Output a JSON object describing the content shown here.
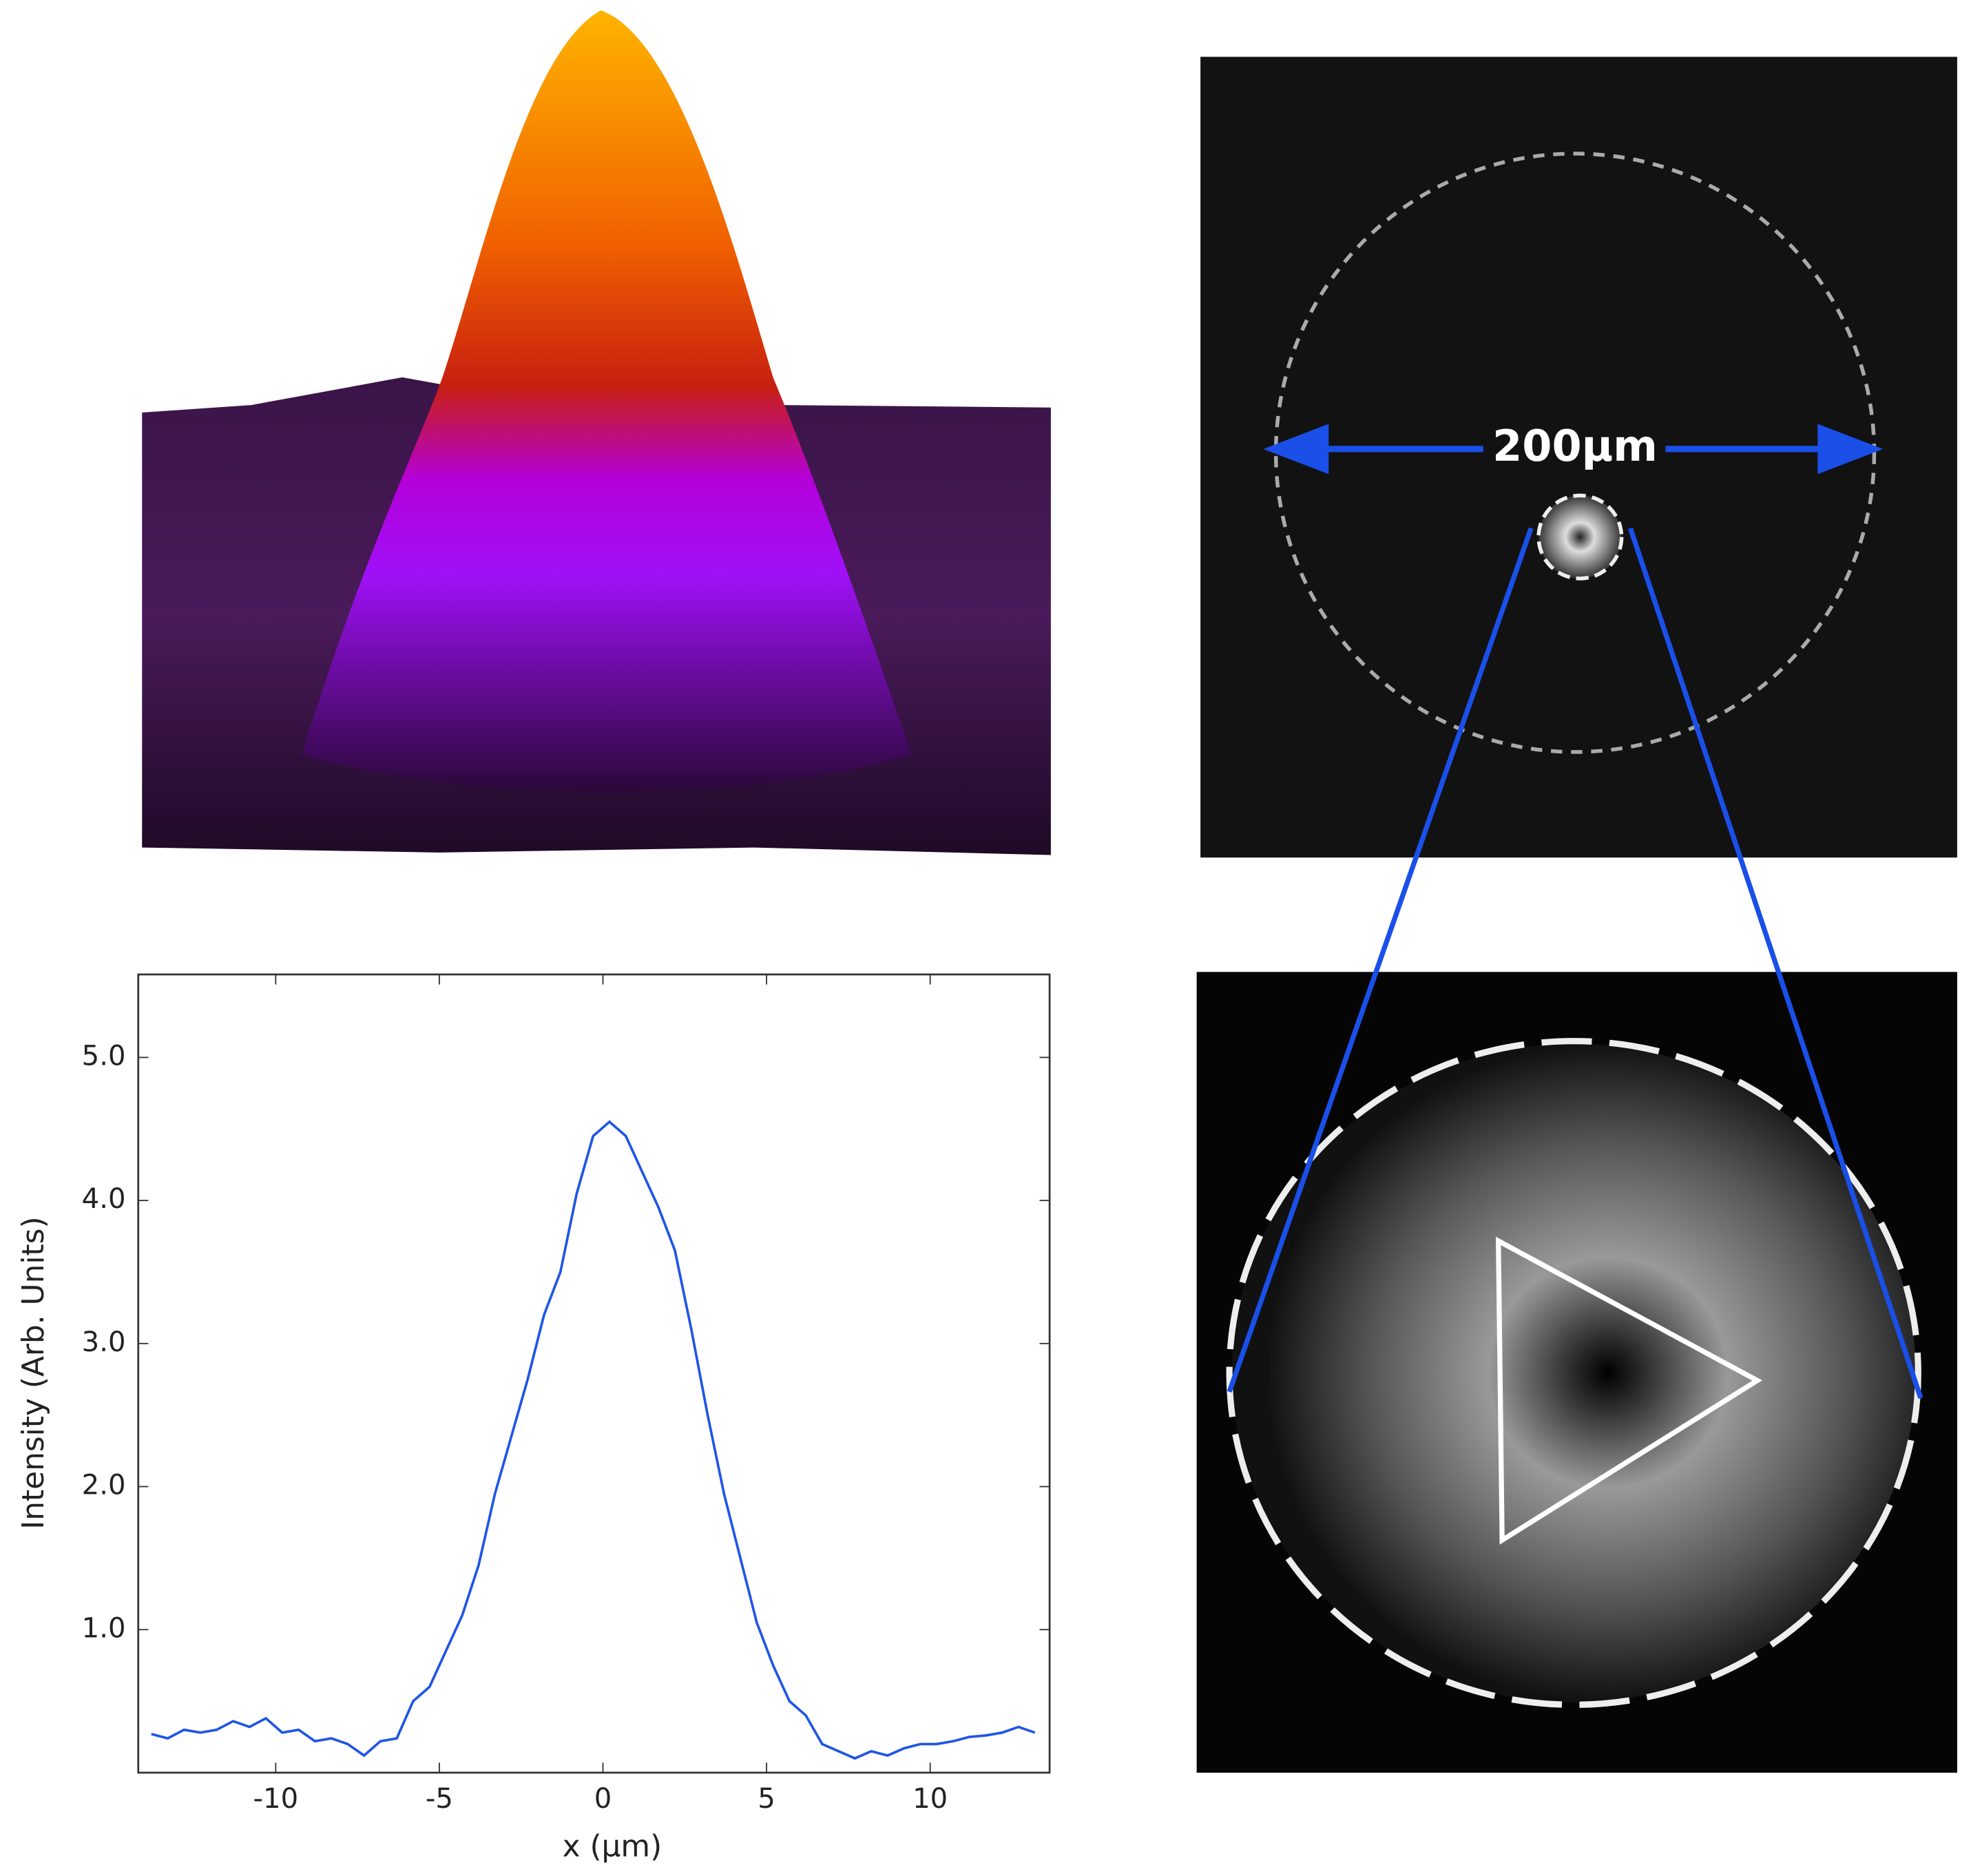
{
  "chart_data": {
    "type": "line",
    "xlabel": "x (μm)",
    "ylabel": "Intensity (Arb. Units)",
    "annotation": "200μm",
    "color": "#1f55e6",
    "xlim": [
      -14.2,
      13.65
    ],
    "ylim": [
      0,
      5.58
    ],
    "xticks": [
      -10,
      -5,
      0,
      5,
      10
    ],
    "yticks": [
      {
        "value": 1,
        "label": "1.0"
      },
      {
        "value": 2,
        "label": "2.0"
      },
      {
        "value": 3,
        "label": "3.0"
      },
      {
        "value": 4,
        "label": "4.0"
      },
      {
        "value": 5,
        "label": "5.0"
      }
    ],
    "x": [
      -13.8,
      -13.3,
      -12.8,
      -12.3,
      -11.8,
      -11.3,
      -10.8,
      -10.3,
      -9.8,
      -9.3,
      -8.8,
      -8.3,
      -7.8,
      -7.3,
      -6.8,
      -6.3,
      -5.8,
      -5.3,
      -4.8,
      -4.3,
      -3.8,
      -3.3,
      -2.8,
      -2.3,
      -1.8,
      -1.3,
      -0.8,
      -0.3,
      0.2,
      0.7,
      1.2,
      1.7,
      2.2,
      2.7,
      3.2,
      3.7,
      4.2,
      4.7,
      5.2,
      5.7,
      6.2,
      6.7,
      7.2,
      7.7,
      8.2,
      8.7,
      9.2,
      9.7,
      10.2,
      10.7,
      11.2,
      11.7,
      12.2,
      12.7,
      13.2
    ],
    "values": [
      0.27,
      0.24,
      0.3,
      0.28,
      0.3,
      0.36,
      0.32,
      0.38,
      0.28,
      0.3,
      0.22,
      0.24,
      0.2,
      0.12,
      0.22,
      0.24,
      0.5,
      0.6,
      0.85,
      1.1,
      1.45,
      1.95,
      2.35,
      2.75,
      3.2,
      3.5,
      4.05,
      4.45,
      4.55,
      4.45,
      4.2,
      3.95,
      3.65,
      3.1,
      2.5,
      1.95,
      1.5,
      1.05,
      0.75,
      0.5,
      0.4,
      0.2,
      0.15,
      0.1,
      0.15,
      0.12,
      0.17,
      0.2,
      0.2,
      0.22,
      0.25,
      0.26,
      0.28,
      0.32,
      0.28
    ]
  }
}
